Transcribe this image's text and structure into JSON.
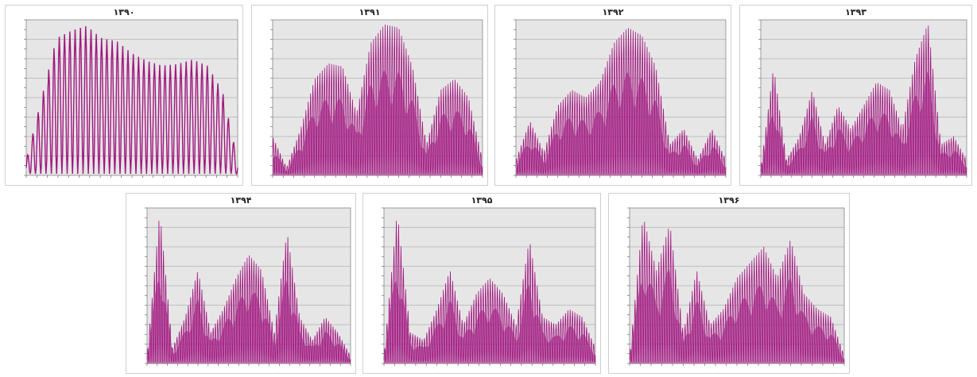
{
  "page": {
    "background": "#ffffff"
  },
  "style": {
    "plot_background": "#e6e6e6",
    "series_color": "#a0167f",
    "grid_color": "#9a9a9a"
  },
  "chart_data": [
    {
      "type": "line",
      "title": "۱۳۹۰",
      "grid": true,
      "pattern": "oscillating",
      "series": [
        {
          "envelope": [
            0.1,
            0.5,
            0.9,
            0.95,
            0.98,
            0.9,
            0.88,
            0.8,
            0.75,
            0.72,
            0.73,
            0.76,
            0.72,
            0.55,
            0.1
          ]
        }
      ]
    },
    {
      "type": "line",
      "title": "۱۳۹۱",
      "grid": true,
      "pattern": "dense",
      "series": [
        {
          "envelope": [
            0.25,
            0.05,
            0.3,
            0.62,
            0.72,
            0.7,
            0.4,
            0.85,
            0.97,
            0.95,
            0.7,
            0.2,
            0.55,
            0.62,
            0.5,
            0.1
          ]
        }
      ]
    },
    {
      "type": "line",
      "title": "۱۳۹۲",
      "grid": true,
      "pattern": "dense",
      "series": [
        {
          "envelope": [
            0.1,
            0.35,
            0.15,
            0.45,
            0.55,
            0.5,
            0.6,
            0.85,
            0.95,
            0.9,
            0.7,
            0.2,
            0.3,
            0.1,
            0.3,
            0.1
          ]
        }
      ]
    },
    {
      "type": "line",
      "title": "۱۳۹۳",
      "grid": true,
      "pattern": "dense",
      "series": [
        {
          "envelope": [
            0.05,
            0.7,
            0.1,
            0.25,
            0.55,
            0.2,
            0.45,
            0.3,
            0.45,
            0.6,
            0.55,
            0.3,
            0.75,
            0.98,
            0.2,
            0.25,
            0.1
          ]
        }
      ]
    },
    {
      "type": "line",
      "title": "۱۳۹۴",
      "grid": true,
      "pattern": "dense",
      "series": [
        {
          "envelope": [
            0.05,
            0.98,
            0.1,
            0.3,
            0.6,
            0.2,
            0.35,
            0.55,
            0.7,
            0.6,
            0.2,
            0.85,
            0.3,
            0.15,
            0.3,
            0.2,
            0.05
          ]
        }
      ]
    },
    {
      "type": "line",
      "title": "۱۳۹۵",
      "grid": true,
      "pattern": "dense",
      "series": [
        {
          "envelope": [
            0.05,
            0.98,
            0.2,
            0.15,
            0.35,
            0.6,
            0.25,
            0.45,
            0.55,
            0.45,
            0.25,
            0.8,
            0.3,
            0.25,
            0.35,
            0.3,
            0.1
          ]
        }
      ]
    },
    {
      "type": "line",
      "title": "۱۳۹۶",
      "grid": true,
      "pattern": "dense",
      "series": [
        {
          "envelope": [
            0.05,
            0.95,
            0.6,
            0.9,
            0.2,
            0.6,
            0.25,
            0.35,
            0.55,
            0.65,
            0.75,
            0.55,
            0.8,
            0.45,
            0.35,
            0.3,
            0.05
          ]
        }
      ]
    }
  ]
}
